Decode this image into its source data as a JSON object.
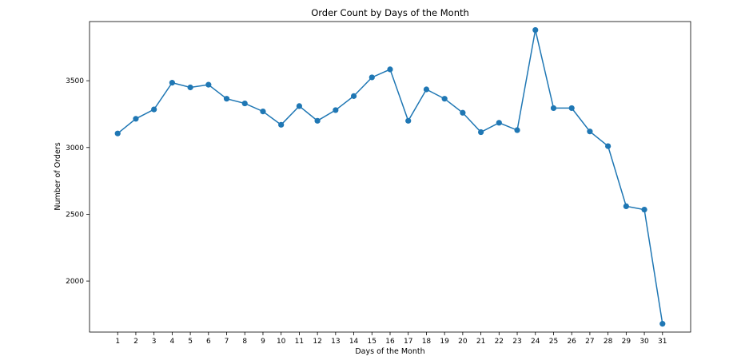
{
  "chart_data": {
    "type": "line",
    "title": "Order Count by Days of the Month",
    "xlabel": "Days of the Month",
    "ylabel": "Number of Orders",
    "x": [
      1,
      2,
      3,
      4,
      5,
      6,
      7,
      8,
      9,
      10,
      11,
      12,
      13,
      14,
      15,
      16,
      17,
      18,
      19,
      20,
      21,
      22,
      23,
      24,
      25,
      26,
      27,
      28,
      29,
      30,
      31
    ],
    "series": [
      {
        "values": [
          3105,
          3215,
          3285,
          3485,
          3450,
          3470,
          3365,
          3330,
          3270,
          3170,
          3310,
          3200,
          3280,
          3385,
          3525,
          3585,
          3200,
          3435,
          3365,
          3260,
          3115,
          3185,
          3130,
          3880,
          3295,
          3295,
          3120,
          3010,
          2560,
          2535,
          1680
        ],
        "color": "#1f77b4"
      }
    ],
    "y_ticks": [
      2000,
      2500,
      3000,
      3500
    ],
    "ylim": [
      1618,
      3943
    ],
    "xlim": [
      -0.55,
      32.55
    ],
    "grid": false,
    "legend": "none"
  }
}
